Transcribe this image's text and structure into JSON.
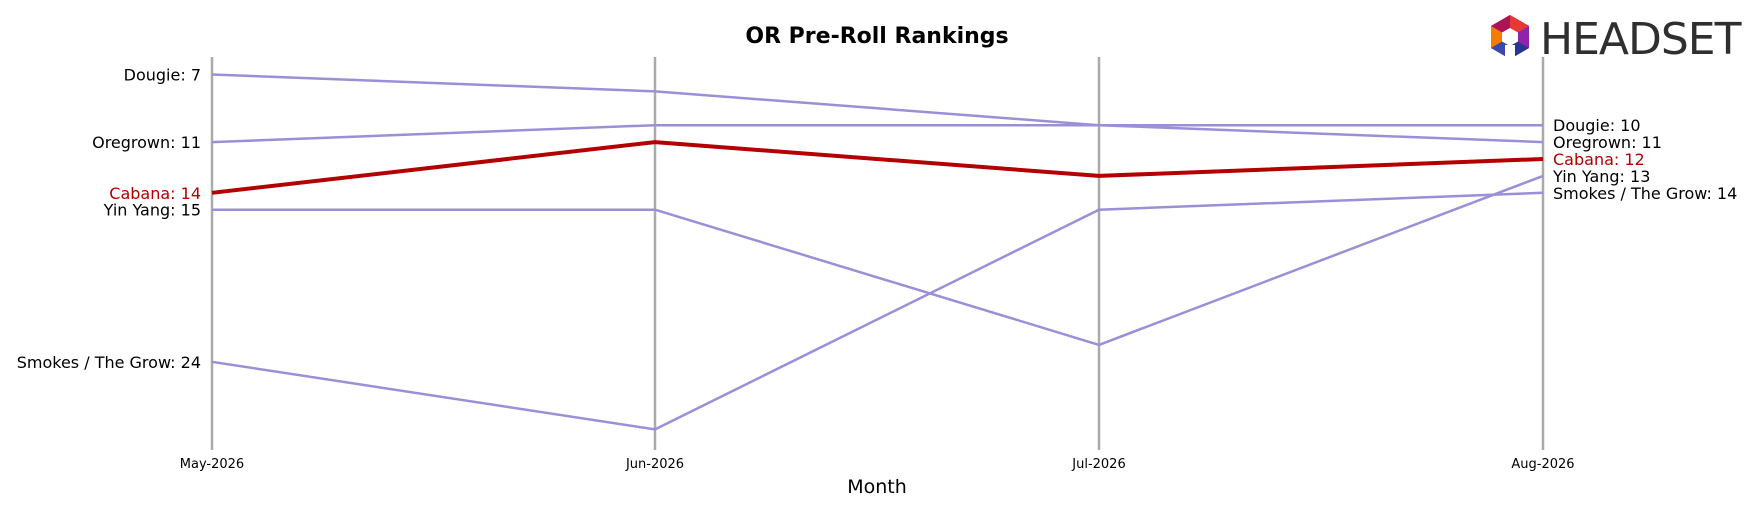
{
  "chart_data": {
    "type": "line",
    "title": "OR Pre-Roll Rankings",
    "xlabel": "Month",
    "ylabel": "",
    "x": [
      "May-2026",
      "Jun-2026",
      "Jul-2026",
      "Aug-2026"
    ],
    "y_inverted": true,
    "ylim": [
      6,
      28
    ],
    "grid": "vertical lines at each month",
    "legend": "none (series labelled at line ends)",
    "series": [
      {
        "name": "Dougie",
        "values": [
          7,
          8,
          10,
          10
        ],
        "color": "#9b8fd8",
        "highlight": false
      },
      {
        "name": "Oregrown",
        "values": [
          11,
          10,
          10,
          11
        ],
        "color": "#9b8fd8",
        "highlight": false
      },
      {
        "name": "Cabana",
        "values": [
          14,
          11,
          13,
          12
        ],
        "color": "#b30000",
        "highlight": true
      },
      {
        "name": "Yin Yang",
        "values": [
          15,
          15,
          23,
          13
        ],
        "color": "#9b8fd8",
        "highlight": false
      },
      {
        "name": "Smokes / The Grow",
        "values": [
          24,
          28,
          15,
          14
        ],
        "color": "#9b8fd8",
        "highlight": false
      }
    ],
    "left_labels": [
      {
        "text": "Dougie: 7",
        "color": "#000000"
      },
      {
        "text": "Oregrown: 11",
        "color": "#000000"
      },
      {
        "text": "Cabana: 14",
        "color": "#b30000"
      },
      {
        "text": "Yin Yang: 15",
        "color": "#000000"
      },
      {
        "text": "Smokes / The Grow: 24",
        "color": "#000000"
      }
    ],
    "right_labels": [
      {
        "text": "Dougie: 10",
        "color": "#000000"
      },
      {
        "text": "Oregrown: 11",
        "color": "#000000"
      },
      {
        "text": "Cabana: 12",
        "color": "#b30000"
      },
      {
        "text": "Yin Yang: 13",
        "color": "#000000"
      },
      {
        "text": "Smokes / The Grow: 14",
        "color": "#000000"
      }
    ]
  },
  "logo": {
    "text": "HEADSET",
    "icon": "headset-logo-icon"
  },
  "colors": {
    "highlight": "#b30000",
    "series": "#9b8fd8",
    "gridline": "#aaaaaa"
  }
}
